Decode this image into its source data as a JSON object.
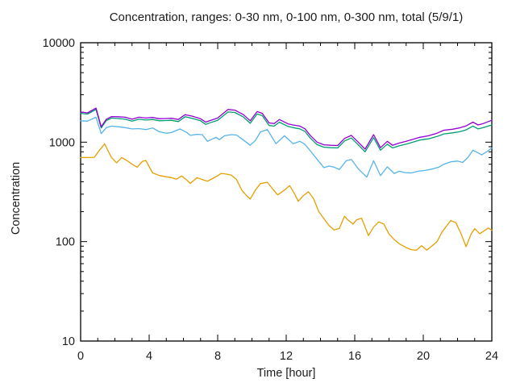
{
  "chart_data": {
    "type": "line",
    "title": "Concentration, ranges: 0-30 nm, 0-100 nm, 0-300 nm, total (5/9/1)",
    "xlabel": "Time [hour]",
    "ylabel": "Concentration",
    "xlim": [
      0,
      24
    ],
    "ylim": [
      10,
      10000
    ],
    "y_scale": "log",
    "grid": false,
    "legend": "none",
    "x_major_ticks": [
      0,
      4,
      8,
      12,
      16,
      20,
      24
    ],
    "x_minor_step": 1,
    "y_major_ticks": [
      10,
      100,
      1000,
      10000
    ],
    "y_tick_labels": [
      "10",
      "100",
      "1000",
      "10000"
    ],
    "axis_color": "#000000",
    "series": [
      {
        "name": "0-30 nm",
        "color": "#E69F00",
        "points": [
          [
            0,
            700
          ],
          [
            0.5,
            700
          ],
          [
            0.8,
            705
          ],
          [
            1.1,
            830
          ],
          [
            1.4,
            960
          ],
          [
            1.6,
            820
          ],
          [
            1.8,
            700
          ],
          [
            2.1,
            620
          ],
          [
            2.4,
            700
          ],
          [
            2.7,
            655
          ],
          [
            3.0,
            600
          ],
          [
            3.3,
            560
          ],
          [
            3.6,
            640
          ],
          [
            3.8,
            655
          ],
          [
            4.2,
            490
          ],
          [
            4.6,
            462
          ],
          [
            5.0,
            448
          ],
          [
            5.3,
            440
          ],
          [
            5.6,
            425
          ],
          [
            5.9,
            458
          ],
          [
            6.2,
            415
          ],
          [
            6.4,
            385
          ],
          [
            6.8,
            440
          ],
          [
            7.1,
            420
          ],
          [
            7.4,
            405
          ],
          [
            7.7,
            430
          ],
          [
            8.0,
            460
          ],
          [
            8.2,
            485
          ],
          [
            8.5,
            478
          ],
          [
            8.8,
            465
          ],
          [
            9.1,
            420
          ],
          [
            9.4,
            330
          ],
          [
            9.7,
            288
          ],
          [
            9.9,
            268
          ],
          [
            10.2,
            330
          ],
          [
            10.5,
            383
          ],
          [
            10.9,
            395
          ],
          [
            11.2,
            340
          ],
          [
            11.5,
            295
          ],
          [
            11.9,
            330
          ],
          [
            12.2,
            365
          ],
          [
            12.5,
            300
          ],
          [
            12.7,
            254
          ],
          [
            13.0,
            290
          ],
          [
            13.3,
            317
          ],
          [
            13.6,
            270
          ],
          [
            13.9,
            200
          ],
          [
            14.2,
            170
          ],
          [
            14.5,
            145
          ],
          [
            14.8,
            131
          ],
          [
            15.1,
            136
          ],
          [
            15.4,
            180
          ],
          [
            15.6,
            165
          ],
          [
            15.9,
            150
          ],
          [
            16.1,
            165
          ],
          [
            16.4,
            172
          ],
          [
            16.8,
            115
          ],
          [
            17.1,
            140
          ],
          [
            17.4,
            158
          ],
          [
            17.7,
            150
          ],
          [
            18.0,
            119
          ],
          [
            18.3,
            105
          ],
          [
            18.6,
            95
          ],
          [
            19.0,
            87
          ],
          [
            19.3,
            83
          ],
          [
            19.6,
            82
          ],
          [
            19.9,
            91
          ],
          [
            20.2,
            82
          ],
          [
            20.5,
            90
          ],
          [
            20.8,
            100
          ],
          [
            21.1,
            125
          ],
          [
            21.6,
            163
          ],
          [
            21.9,
            155
          ],
          [
            22.2,
            120
          ],
          [
            22.5,
            89
          ],
          [
            22.8,
            120
          ],
          [
            23.0,
            135
          ],
          [
            23.3,
            120
          ],
          [
            23.6,
            130
          ],
          [
            23.8,
            137
          ],
          [
            24,
            130
          ]
        ]
      },
      {
        "name": "0-100 nm",
        "color": "#56B4E9",
        "points": [
          [
            0,
            1640
          ],
          [
            0.4,
            1630
          ],
          [
            0.9,
            1780
          ],
          [
            1.2,
            1220
          ],
          [
            1.5,
            1400
          ],
          [
            1.8,
            1450
          ],
          [
            2.2,
            1430
          ],
          [
            2.6,
            1400
          ],
          [
            3.0,
            1360
          ],
          [
            3.4,
            1370
          ],
          [
            3.8,
            1340
          ],
          [
            4.2,
            1390
          ],
          [
            4.6,
            1270
          ],
          [
            5.0,
            1230
          ],
          [
            5.3,
            1250
          ],
          [
            5.8,
            1360
          ],
          [
            6.2,
            1250
          ],
          [
            6.4,
            1170
          ],
          [
            6.8,
            1200
          ],
          [
            7.1,
            1190
          ],
          [
            7.4,
            1020
          ],
          [
            7.9,
            1120
          ],
          [
            8.1,
            1060
          ],
          [
            8.4,
            1160
          ],
          [
            8.8,
            1190
          ],
          [
            9.1,
            1180
          ],
          [
            9.5,
            1050
          ],
          [
            9.9,
            930
          ],
          [
            10.2,
            1040
          ],
          [
            10.5,
            1270
          ],
          [
            10.9,
            1340
          ],
          [
            11.4,
            965
          ],
          [
            11.9,
            1160
          ],
          [
            12.4,
            965
          ],
          [
            12.8,
            1020
          ],
          [
            13.1,
            950
          ],
          [
            13.4,
            820
          ],
          [
            13.9,
            640
          ],
          [
            14.2,
            555
          ],
          [
            14.5,
            575
          ],
          [
            14.8,
            560
          ],
          [
            15.1,
            530
          ],
          [
            15.5,
            650
          ],
          [
            15.8,
            670
          ],
          [
            16.2,
            540
          ],
          [
            16.7,
            445
          ],
          [
            17.1,
            650
          ],
          [
            17.5,
            460
          ],
          [
            17.9,
            565
          ],
          [
            18.3,
            485
          ],
          [
            18.6,
            510
          ],
          [
            18.9,
            495
          ],
          [
            19.3,
            490
          ],
          [
            19.7,
            510
          ],
          [
            20.1,
            520
          ],
          [
            20.5,
            535
          ],
          [
            20.9,
            560
          ],
          [
            21.2,
            600
          ],
          [
            21.6,
            635
          ],
          [
            22.0,
            645
          ],
          [
            22.3,
            625
          ],
          [
            22.6,
            700
          ],
          [
            22.9,
            830
          ],
          [
            23.2,
            780
          ],
          [
            23.4,
            745
          ],
          [
            23.7,
            800
          ],
          [
            24,
            875
          ]
        ]
      },
      {
        "name": "0-300 nm",
        "color": "#009E73",
        "points": [
          [
            0,
            1950
          ],
          [
            0.4,
            1915
          ],
          [
            0.9,
            2130
          ],
          [
            1.2,
            1390
          ],
          [
            1.5,
            1650
          ],
          [
            1.8,
            1750
          ],
          [
            2.2,
            1730
          ],
          [
            2.6,
            1700
          ],
          [
            3.0,
            1630
          ],
          [
            3.4,
            1700
          ],
          [
            3.8,
            1670
          ],
          [
            4.2,
            1690
          ],
          [
            4.6,
            1640
          ],
          [
            5.0,
            1650
          ],
          [
            5.3,
            1660
          ],
          [
            5.7,
            1610
          ],
          [
            6.1,
            1800
          ],
          [
            6.5,
            1740
          ],
          [
            7.0,
            1640
          ],
          [
            7.3,
            1510
          ],
          [
            7.7,
            1600
          ],
          [
            8.0,
            1660
          ],
          [
            8.6,
            2010
          ],
          [
            9.0,
            1990
          ],
          [
            9.5,
            1790
          ],
          [
            9.9,
            1550
          ],
          [
            10.3,
            1920
          ],
          [
            10.6,
            1850
          ],
          [
            11.0,
            1470
          ],
          [
            11.3,
            1450
          ],
          [
            11.6,
            1590
          ],
          [
            12.1,
            1440
          ],
          [
            12.4,
            1400
          ],
          [
            12.8,
            1360
          ],
          [
            13.1,
            1280
          ],
          [
            13.4,
            1100
          ],
          [
            13.8,
            945
          ],
          [
            14.2,
            890
          ],
          [
            14.6,
            880
          ],
          [
            15.0,
            875
          ],
          [
            15.4,
            1030
          ],
          [
            15.8,
            1100
          ],
          [
            16.2,
            940
          ],
          [
            16.6,
            800
          ],
          [
            17.1,
            1110
          ],
          [
            17.5,
            830
          ],
          [
            17.9,
            955
          ],
          [
            18.2,
            875
          ],
          [
            18.6,
            920
          ],
          [
            19.0,
            955
          ],
          [
            19.4,
            1000
          ],
          [
            19.8,
            1050
          ],
          [
            20.3,
            1080
          ],
          [
            20.8,
            1140
          ],
          [
            21.2,
            1210
          ],
          [
            21.7,
            1240
          ],
          [
            22.1,
            1270
          ],
          [
            22.5,
            1330
          ],
          [
            22.9,
            1450
          ],
          [
            23.2,
            1360
          ],
          [
            23.5,
            1400
          ],
          [
            24,
            1490
          ]
        ]
      },
      {
        "name": "total",
        "color": "#9400D3",
        "points": [
          [
            0,
            2010
          ],
          [
            0.4,
            1970
          ],
          [
            0.9,
            2200
          ],
          [
            1.2,
            1430
          ],
          [
            1.5,
            1700
          ],
          [
            1.8,
            1810
          ],
          [
            2.2,
            1800
          ],
          [
            2.6,
            1780
          ],
          [
            3.0,
            1700
          ],
          [
            3.4,
            1780
          ],
          [
            3.8,
            1750
          ],
          [
            4.2,
            1770
          ],
          [
            4.6,
            1720
          ],
          [
            5.0,
            1730
          ],
          [
            5.3,
            1740
          ],
          [
            5.7,
            1690
          ],
          [
            6.1,
            1890
          ],
          [
            6.5,
            1830
          ],
          [
            7.0,
            1720
          ],
          [
            7.3,
            1590
          ],
          [
            7.7,
            1680
          ],
          [
            8.0,
            1750
          ],
          [
            8.6,
            2130
          ],
          [
            9.0,
            2100
          ],
          [
            9.5,
            1890
          ],
          [
            9.9,
            1640
          ],
          [
            10.3,
            2030
          ],
          [
            10.6,
            1950
          ],
          [
            11.0,
            1560
          ],
          [
            11.3,
            1540
          ],
          [
            11.6,
            1690
          ],
          [
            12.1,
            1530
          ],
          [
            12.4,
            1490
          ],
          [
            12.8,
            1450
          ],
          [
            13.1,
            1360
          ],
          [
            13.4,
            1170
          ],
          [
            13.8,
            1000
          ],
          [
            14.2,
            940
          ],
          [
            14.6,
            930
          ],
          [
            15.0,
            925
          ],
          [
            15.4,
            1090
          ],
          [
            15.8,
            1170
          ],
          [
            16.2,
            1000
          ],
          [
            16.6,
            850
          ],
          [
            17.1,
            1190
          ],
          [
            17.5,
            880
          ],
          [
            17.9,
            1020
          ],
          [
            18.2,
            930
          ],
          [
            18.6,
            980
          ],
          [
            19.0,
            1020
          ],
          [
            19.4,
            1070
          ],
          [
            19.8,
            1120
          ],
          [
            20.3,
            1160
          ],
          [
            20.8,
            1230
          ],
          [
            21.2,
            1320
          ],
          [
            21.7,
            1350
          ],
          [
            22.1,
            1390
          ],
          [
            22.5,
            1460
          ],
          [
            22.9,
            1590
          ],
          [
            23.2,
            1490
          ],
          [
            23.5,
            1540
          ],
          [
            24,
            1660
          ]
        ]
      }
    ]
  }
}
